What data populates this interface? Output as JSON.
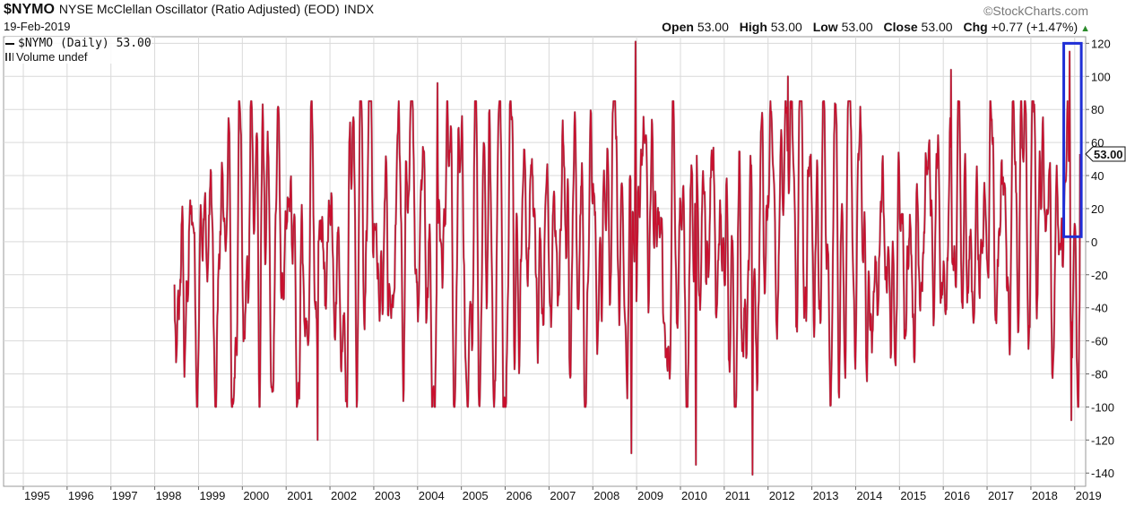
{
  "header": {
    "symbol": "$NYMO",
    "title": "NYSE McClellan Oscillator (Ratio Adjusted) (EOD)",
    "exchange": "INDX",
    "date": "19-Feb-2019",
    "brand": "©StockCharts.com"
  },
  "quote": {
    "open_label": "Open",
    "open": "53.00",
    "high_label": "High",
    "high": "53.00",
    "low_label": "Low",
    "low": "53.00",
    "close_label": "Close",
    "close": "53.00",
    "chg_label": "Chg",
    "chg": "+0.77 (+1.47%)",
    "chg_arrow": "▲"
  },
  "legend": {
    "series": "$NYMO (Daily) 53.00",
    "volume": "Volume undef"
  },
  "colors": {
    "line": "#c8102e",
    "line_dark": "#4a0a14",
    "highlight_box": "#1f2fd6",
    "grid": "#d9d9d9",
    "frame": "#9a9a9a"
  },
  "chart_data": {
    "type": "line",
    "series": [
      {
        "name": "$NYMO (Daily)",
        "x_start": 1998.45,
        "x_end": 2019.13,
        "last_value": 53.0,
        "approx_min": -141,
        "approx_max": 121,
        "notable_points": [
          {
            "x": 2001.72,
            "y": -120
          },
          {
            "x": 2004.45,
            "y": 96
          },
          {
            "x": 2008.88,
            "y": -128
          },
          {
            "x": 2008.98,
            "y": 121
          },
          {
            "x": 2010.35,
            "y": -135
          },
          {
            "x": 2011.65,
            "y": -141
          },
          {
            "x": 2012.45,
            "y": 100
          },
          {
            "x": 2016.18,
            "y": 104
          },
          {
            "x": 2018.88,
            "y": 115
          },
          {
            "x": 2018.92,
            "y": -108
          }
        ]
      }
    ],
    "x_ticks": [
      "1995",
      "1996",
      "1997",
      "1998",
      "1999",
      "2000",
      "2001",
      "2002",
      "2003",
      "2004",
      "2005",
      "2006",
      "2007",
      "2008",
      "2009",
      "2010",
      "2011",
      "2012",
      "2013",
      "2014",
      "2015",
      "2016",
      "2017",
      "2018",
      "2019"
    ],
    "y_ticks": [
      120,
      100,
      80,
      60,
      40,
      20,
      0,
      -20,
      -40,
      -60,
      -80,
      -100,
      -120,
      -140
    ],
    "xlim": [
      1994.55,
      2019.25
    ],
    "ylim": [
      -148,
      124
    ],
    "grid": true,
    "y_axis_side": "right",
    "last_value_label": "53.00",
    "highlight_box": {
      "x0": 2018.75,
      "x1": 2019.15,
      "y0": 3,
      "y1": 120
    }
  }
}
